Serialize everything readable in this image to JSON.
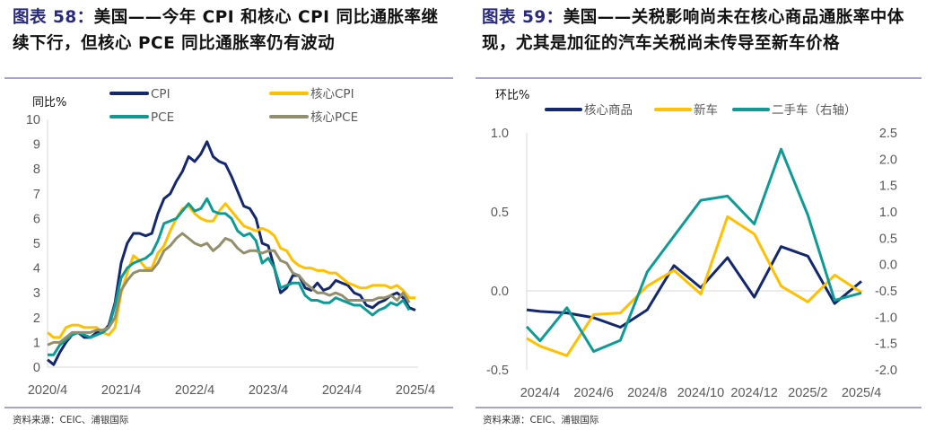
{
  "left": {
    "title_prefix": "图表 58：",
    "title_text": "美国——今年 CPI 和核心 CPI 同比通胀率继续下行，但核心 PCE 同比通胀率仍有波动",
    "source": "资料来源：CEIC、浦银国际"
  },
  "right": {
    "title_prefix": "图表 59：",
    "title_text": "美国——关税影响尚未在核心商品通胀率中体现，尤其是加征的汽车关税尚未传导至新车价格",
    "source": "资料来源：CEIC、浦银国际"
  },
  "chart_data": [
    {
      "type": "line",
      "ylabel": "同比%",
      "ylim": [
        0,
        10
      ],
      "yticks": [
        "0",
        "1",
        "2",
        "3",
        "4",
        "5",
        "6",
        "7",
        "8",
        "9",
        "10"
      ],
      "x_start": "2020/4",
      "xticks": [
        "2020/4",
        "2021/4",
        "2022/4",
        "2023/4",
        "2024/4",
        "2025/4"
      ],
      "grid": false,
      "legend": "top",
      "series": [
        {
          "name": "CPI",
          "color": "#13286e",
          "values": [
            0.3,
            0.1,
            0.6,
            1.0,
            1.3,
            1.4,
            1.2,
            1.2,
            1.4,
            1.4,
            1.7,
            2.6,
            4.2,
            5.0,
            5.4,
            5.4,
            5.3,
            5.4,
            6.2,
            6.8,
            7.0,
            7.5,
            7.9,
            8.5,
            8.3,
            8.6,
            9.1,
            8.5,
            8.3,
            8.2,
            7.7,
            7.1,
            6.5,
            6.4,
            6.0,
            5.0,
            4.9,
            4.0,
            3.0,
            3.2,
            3.7,
            3.7,
            3.2,
            3.1,
            3.4,
            3.1,
            3.2,
            3.5,
            3.4,
            3.3,
            3.0,
            2.9,
            2.5,
            2.4,
            2.6,
            2.7,
            2.9,
            3.0,
            2.8,
            2.4,
            2.3
          ]
        },
        {
          "name": "核心CPI",
          "color": "#ffc000",
          "values": [
            1.4,
            1.2,
            1.2,
            1.6,
            1.7,
            1.7,
            1.6,
            1.6,
            1.6,
            1.4,
            1.3,
            1.6,
            3.0,
            3.8,
            4.5,
            4.3,
            4.0,
            4.0,
            4.6,
            4.9,
            5.5,
            6.0,
            6.4,
            6.5,
            6.2,
            6.0,
            5.9,
            5.9,
            6.3,
            6.6,
            6.3,
            6.0,
            5.7,
            5.6,
            5.5,
            5.6,
            5.5,
            5.3,
            4.8,
            4.7,
            4.3,
            4.1,
            4.0,
            4.0,
            3.9,
            3.9,
            3.8,
            3.8,
            3.6,
            3.4,
            3.3,
            3.2,
            3.2,
            3.3,
            3.3,
            3.3,
            3.2,
            3.3,
            3.1,
            2.8,
            2.8
          ]
        },
        {
          "name": "PCE",
          "color": "#0e9b96",
          "values": [
            0.5,
            0.5,
            0.9,
            1.1,
            1.3,
            1.4,
            1.3,
            1.2,
            1.3,
            1.4,
            1.6,
            2.5,
            3.6,
            4.0,
            4.2,
            4.3,
            4.4,
            4.6,
            5.1,
            5.8,
            5.9,
            6.0,
            6.3,
            6.6,
            6.3,
            6.4,
            6.8,
            6.3,
            6.2,
            6.2,
            6.0,
            5.5,
            5.3,
            5.4,
            5.1,
            4.2,
            4.4,
            4.0,
            3.2,
            3.3,
            3.4,
            3.4,
            2.9,
            2.7,
            2.7,
            2.6,
            2.6,
            2.8,
            2.7,
            2.6,
            2.5,
            2.5,
            2.3,
            2.1,
            2.3,
            2.4,
            2.6,
            2.5,
            2.7,
            2.3
          ]
        },
        {
          "name": "核心PCE",
          "color": "#938f6c",
          "values": [
            0.9,
            1.0,
            1.0,
            1.2,
            1.4,
            1.4,
            1.4,
            1.4,
            1.5,
            1.5,
            1.6,
            2.0,
            3.1,
            3.5,
            3.8,
            3.9,
            3.9,
            3.9,
            4.2,
            4.7,
            4.9,
            5.2,
            5.4,
            5.2,
            5.0,
            4.9,
            5.0,
            4.7,
            4.9,
            5.2,
            5.1,
            4.8,
            4.6,
            4.7,
            4.7,
            4.6,
            4.7,
            4.7,
            4.3,
            4.2,
            3.8,
            3.7,
            3.4,
            3.2,
            3.0,
            3.0,
            2.9,
            3.0,
            2.9,
            2.7,
            2.7,
            2.7,
            2.7,
            2.7,
            2.8,
            2.8,
            2.9,
            2.7,
            3.0,
            2.6
          ]
        }
      ]
    },
    {
      "type": "line",
      "ylabel": "环比%",
      "ylim": [
        -0.5,
        1.0
      ],
      "yticks": [
        "-0.5",
        "0.0",
        "0.5",
        "1.0"
      ],
      "y2lim": [
        -2.0,
        2.5
      ],
      "y2ticks": [
        "-2.0",
        "-1.5",
        "-1.0",
        "-0.5",
        "0.0",
        "0.5",
        "1.0",
        "1.5",
        "2.0",
        "2.5"
      ],
      "x": [
        "2024/3",
        "2024/4",
        "2024/5",
        "2024/6",
        "2024/7",
        "2024/8",
        "2024/9",
        "2024/10",
        "2024/11",
        "2024/12",
        "2025/1",
        "2025/2",
        "2025/3",
        "2025/4"
      ],
      "xticks": [
        "2024/4",
        "2024/6",
        "2024/8",
        "2024/10",
        "2024/12",
        "2025/2",
        "2025/4"
      ],
      "grid": false,
      "legend": "top",
      "series": [
        {
          "name": "核心商品",
          "color": "#13286e",
          "axis": "left",
          "values": [
            -0.11,
            -0.13,
            -0.14,
            -0.17,
            -0.23,
            -0.12,
            0.16,
            0.02,
            0.21,
            -0.04,
            0.28,
            0.22,
            -0.08,
            0.06
          ]
        },
        {
          "name": "新车",
          "color": "#ffc000",
          "axis": "left",
          "values": [
            -0.25,
            -0.35,
            -0.41,
            -0.15,
            -0.14,
            0.03,
            0.13,
            -0.02,
            0.47,
            0.36,
            0.03,
            -0.07,
            0.1,
            -0.01
          ]
        },
        {
          "name": "二手车（右轴）",
          "color": "#0e9b96",
          "axis": "right",
          "values": [
            -0.91,
            -1.45,
            -0.82,
            -1.65,
            -1.44,
            -0.14,
            0.54,
            1.22,
            1.3,
            0.77,
            2.19,
            0.94,
            -0.68,
            -0.54
          ]
        }
      ]
    }
  ]
}
